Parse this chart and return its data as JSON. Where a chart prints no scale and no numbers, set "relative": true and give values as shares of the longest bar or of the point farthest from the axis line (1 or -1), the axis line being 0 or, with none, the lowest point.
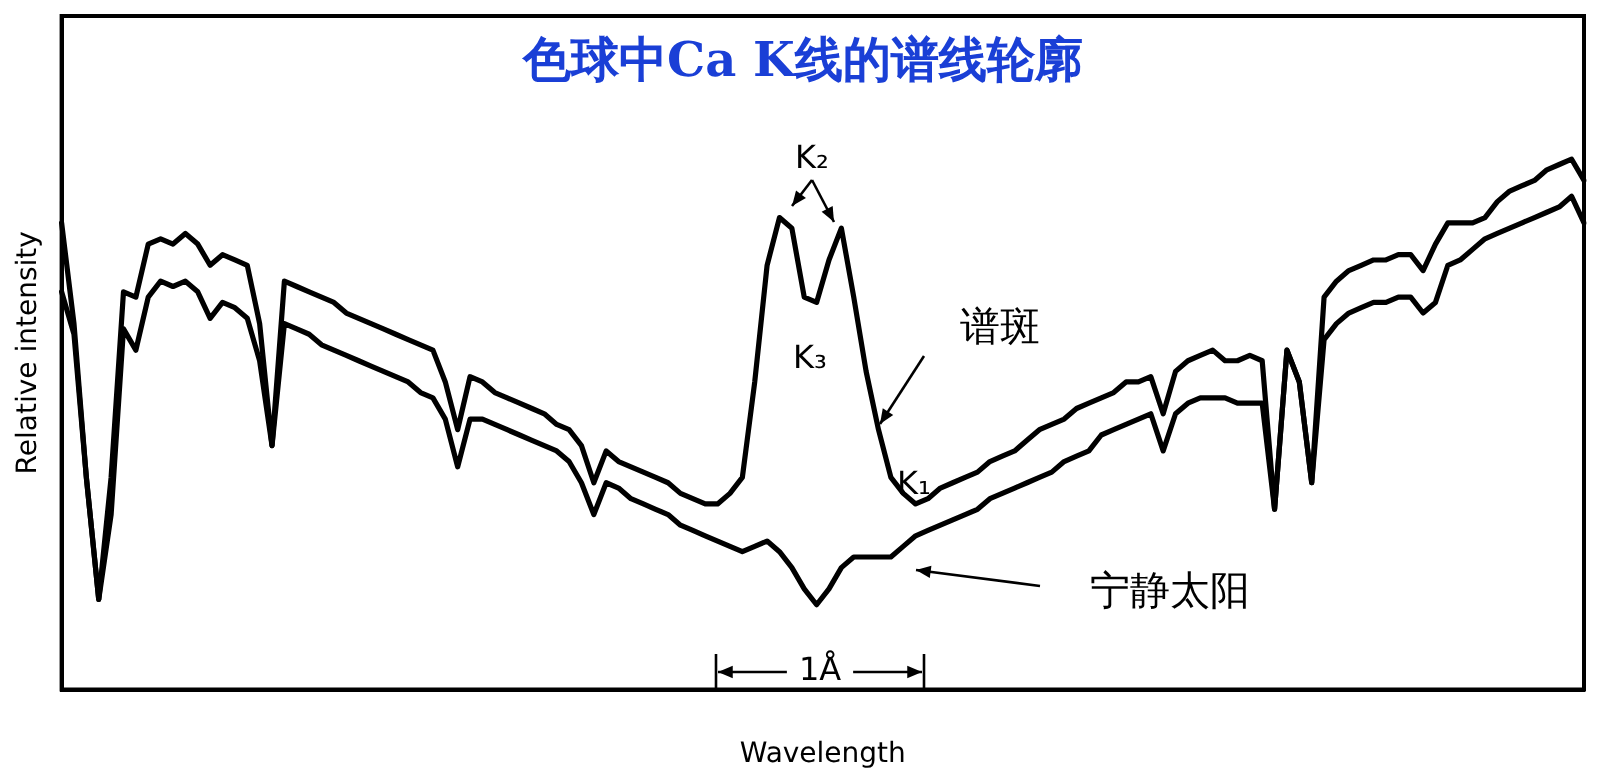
{
  "chart_data": {
    "type": "line",
    "title": "色球中Ca K线的谱线轮廓",
    "xlabel": "Wavelength",
    "ylabel": "Relative intensity",
    "relative": true,
    "legend": "right",
    "grid": false,
    "marker": "none",
    "line_style": "solid",
    "categories": [
      null,
      null,
      null,
      null,
      null,
      null,
      null,
      null,
      null,
      null,
      null,
      null,
      null,
      null,
      null,
      null,
      null,
      null,
      null,
      null,
      null,
      null,
      null,
      null,
      null,
      null,
      null,
      null,
      null,
      null,
      null,
      null,
      null,
      null,
      null,
      null,
      null,
      null,
      null,
      null,
      null,
      null,
      null,
      null,
      null,
      null,
      null,
      null,
      null,
      null,
      null,
      null,
      null,
      null,
      null,
      null,
      null,
      null,
      null,
      null,
      null,
      null,
      null,
      null,
      null,
      null,
      null,
      null,
      null,
      null,
      null,
      null,
      null,
      null,
      null,
      null,
      null,
      null,
      null,
      null,
      null,
      null,
      null,
      null,
      null,
      null,
      null,
      null,
      null,
      null,
      null,
      null,
      null,
      null,
      null,
      null,
      null,
      null,
      null,
      null,
      null,
      null,
      null,
      null,
      null,
      null,
      null,
      null,
      null,
      null,
      null,
      null,
      null,
      null,
      null,
      null,
      null,
      null,
      null,
      null,
      null,
      null,
      null,
      null
    ],
    "series": [
      {
        "name": "谱斑",
        "color": "#000000",
        "values": [
          0.88,
          0.69,
          0.4,
          0.17,
          0.4,
          0.75,
          0.74,
          0.84,
          0.85,
          0.84,
          0.86,
          0.84,
          0.8,
          0.82,
          0.81,
          0.8,
          0.69,
          0.46,
          0.77,
          0.76,
          0.75,
          0.74,
          0.73,
          0.71,
          0.7,
          0.69,
          0.68,
          0.67,
          0.66,
          0.65,
          0.64,
          0.58,
          0.49,
          0.59,
          0.58,
          0.56,
          0.55,
          0.54,
          0.53,
          0.52,
          0.5,
          0.49,
          0.46,
          0.39,
          0.45,
          0.43,
          0.42,
          0.41,
          0.4,
          0.39,
          0.37,
          0.36,
          0.35,
          0.35,
          0.37,
          0.4,
          0.58,
          0.8,
          0.89,
          0.87,
          0.74,
          0.73,
          0.81,
          0.87,
          0.74,
          0.6,
          0.49,
          0.4,
          0.37,
          0.35,
          0.36,
          0.38,
          0.39,
          0.4,
          0.41,
          0.43,
          0.44,
          0.45,
          0.47,
          0.49,
          0.5,
          0.51,
          0.53,
          0.54,
          0.55,
          0.56,
          0.58,
          0.58,
          0.59,
          0.52,
          0.6,
          0.62,
          0.63,
          0.64,
          0.62,
          0.62,
          0.63,
          0.62,
          0.34,
          0.64,
          0.58,
          0.39,
          0.74,
          0.77,
          0.79,
          0.8,
          0.81,
          0.81,
          0.82,
          0.82,
          0.79,
          0.84,
          0.88,
          0.88,
          0.88,
          0.89,
          0.92,
          0.94,
          0.95,
          0.96,
          0.98,
          0.99,
          1.0,
          0.96
        ]
      },
      {
        "name": "宁静太阳",
        "color": "#000000",
        "values": [
          0.75,
          0.67,
          0.4,
          0.17,
          0.33,
          0.68,
          0.64,
          0.74,
          0.77,
          0.76,
          0.77,
          0.75,
          0.7,
          0.73,
          0.72,
          0.7,
          0.62,
          0.46,
          0.69,
          0.68,
          0.67,
          0.65,
          0.64,
          0.63,
          0.62,
          0.61,
          0.6,
          0.59,
          0.58,
          0.56,
          0.55,
          0.51,
          0.42,
          0.51,
          0.51,
          0.5,
          0.49,
          0.48,
          0.47,
          0.46,
          0.45,
          0.43,
          0.39,
          0.33,
          0.39,
          0.38,
          0.36,
          0.35,
          0.34,
          0.33,
          0.31,
          0.3,
          0.29,
          0.28,
          0.27,
          0.26,
          0.27,
          0.28,
          0.26,
          0.23,
          0.19,
          0.16,
          0.19,
          0.23,
          0.25,
          0.25,
          0.25,
          0.25,
          0.27,
          0.29,
          0.3,
          0.31,
          0.32,
          0.33,
          0.34,
          0.36,
          0.37,
          0.38,
          0.39,
          0.4,
          0.41,
          0.43,
          0.44,
          0.45,
          0.48,
          0.49,
          0.5,
          0.51,
          0.52,
          0.45,
          0.52,
          0.54,
          0.55,
          0.55,
          0.55,
          0.54,
          0.54,
          0.54,
          0.34,
          0.64,
          0.58,
          0.39,
          0.66,
          0.69,
          0.71,
          0.72,
          0.73,
          0.73,
          0.74,
          0.74,
          0.71,
          0.73,
          0.8,
          0.81,
          0.83,
          0.85,
          0.86,
          0.87,
          0.88,
          0.89,
          0.9,
          0.91,
          0.93,
          0.88
        ]
      }
    ],
    "annotations": [
      "K₂",
      "K₃",
      "K₁",
      "1Å"
    ]
  }
}
